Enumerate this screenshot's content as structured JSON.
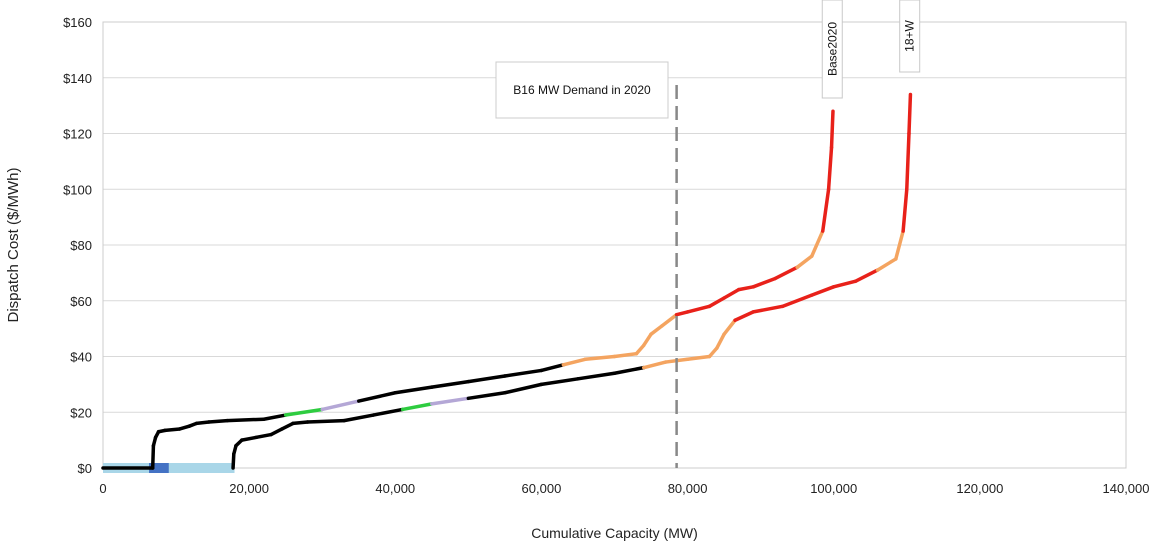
{
  "chart_data": {
    "type": "line",
    "title": "",
    "xlabel": "Cumulative Capacity (MW)",
    "ylabel": "Dispatch Cost ($/MWh)",
    "xlim": [
      0,
      140000
    ],
    "ylim": [
      0,
      160
    ],
    "x_ticks": [
      "0",
      "20,000",
      "40,000",
      "60,000",
      "80,000",
      "100,000",
      "120,000",
      "140,000"
    ],
    "y_ticks": [
      "$0",
      "$20",
      "$40",
      "$60",
      "$80",
      "$100",
      "$120",
      "$140",
      "$160"
    ],
    "grid": "horizontal",
    "demand_line": {
      "x": 78500,
      "label": "B16 MW Demand in 2020",
      "color": "#888888"
    },
    "colors": {
      "zero_cost": "#a9d6e8",
      "zero_cost_dark": "#4472c4",
      "low": "#000000",
      "mid_green": "#2ecc40",
      "mid_lavender": "#b4a7d6",
      "upper": "#f4a460",
      "peak": "#e8211a"
    },
    "series": [
      {
        "name": "Base2020",
        "points": [
          [
            0,
            0
          ],
          [
            6800,
            0
          ],
          [
            6900,
            8
          ],
          [
            7200,
            11
          ],
          [
            7600,
            13
          ],
          [
            8500,
            13.5
          ],
          [
            10500,
            14
          ],
          [
            11800,
            15
          ],
          [
            12800,
            16
          ],
          [
            14500,
            16.5
          ],
          [
            17000,
            17
          ],
          [
            22000,
            17.5
          ],
          [
            25000,
            19
          ],
          [
            30000,
            21
          ],
          [
            35000,
            24
          ],
          [
            40000,
            27
          ],
          [
            45000,
            29
          ],
          [
            50000,
            31
          ],
          [
            55000,
            33
          ],
          [
            60000,
            35
          ],
          [
            63000,
            37
          ],
          [
            66000,
            39
          ],
          [
            70000,
            40
          ],
          [
            73000,
            41
          ],
          [
            74000,
            44
          ],
          [
            75000,
            48
          ],
          [
            76500,
            51
          ],
          [
            78500,
            55
          ],
          [
            80000,
            56
          ],
          [
            83000,
            58
          ],
          [
            85000,
            61
          ],
          [
            87000,
            64
          ],
          [
            89000,
            65
          ],
          [
            92000,
            68
          ],
          [
            95000,
            72
          ],
          [
            97000,
            76
          ],
          [
            98500,
            85
          ],
          [
            99300,
            100
          ],
          [
            99700,
            115
          ],
          [
            99900,
            128
          ]
        ],
        "colors": [
          "low",
          "low",
          "low",
          "low",
          "low",
          "low",
          "low",
          "low",
          "low",
          "low",
          "low",
          "low",
          "low",
          "mid_green",
          "mid_lavender",
          "low",
          "low",
          "low",
          "low",
          "low",
          "low",
          "upper",
          "upper",
          "upper",
          "upper",
          "upper",
          "upper",
          "upper",
          "peak",
          "peak",
          "peak",
          "peak",
          "peak",
          "peak",
          "peak",
          "upper",
          "upper",
          "peak",
          "peak",
          "peak"
        ]
      },
      {
        "name": "18+W",
        "points": [
          [
            17800,
            0
          ],
          [
            17900,
            5
          ],
          [
            18200,
            8
          ],
          [
            19000,
            10
          ],
          [
            21000,
            11
          ],
          [
            23000,
            12
          ],
          [
            24500,
            14
          ],
          [
            26000,
            16
          ],
          [
            28000,
            16.5
          ],
          [
            33000,
            17
          ],
          [
            37000,
            19
          ],
          [
            41000,
            21
          ],
          [
            45000,
            23
          ],
          [
            50000,
            25
          ],
          [
            55000,
            27
          ],
          [
            60000,
            30
          ],
          [
            65000,
            32
          ],
          [
            70000,
            34
          ],
          [
            74000,
            36
          ],
          [
            77000,
            38
          ],
          [
            80000,
            39
          ],
          [
            83000,
            40
          ],
          [
            84000,
            43
          ],
          [
            85000,
            48
          ],
          [
            86500,
            53
          ],
          [
            89000,
            56
          ],
          [
            93000,
            58
          ],
          [
            97000,
            62
          ],
          [
            100000,
            65
          ],
          [
            103000,
            67
          ],
          [
            106000,
            71
          ],
          [
            108500,
            75
          ],
          [
            109500,
            85
          ],
          [
            110000,
            100
          ],
          [
            110300,
            120
          ],
          [
            110500,
            134
          ]
        ],
        "colors": [
          "low",
          "low",
          "low",
          "low",
          "low",
          "low",
          "low",
          "low",
          "low",
          "low",
          "low",
          "low",
          "mid_green",
          "mid_lavender",
          "low",
          "low",
          "low",
          "low",
          "low",
          "upper",
          "upper",
          "upper",
          "upper",
          "upper",
          "upper",
          "peak",
          "peak",
          "peak",
          "peak",
          "peak",
          "peak",
          "upper",
          "upper",
          "peak",
          "peak",
          "peak"
        ]
      }
    ],
    "zero_cost_bands": [
      {
        "x0": 0,
        "x1": 18000,
        "y": 0,
        "color_key": "zero_cost"
      },
      {
        "x0": 6300,
        "x1": 9000,
        "y": 0,
        "color_key": "zero_cost_dark"
      }
    ]
  }
}
